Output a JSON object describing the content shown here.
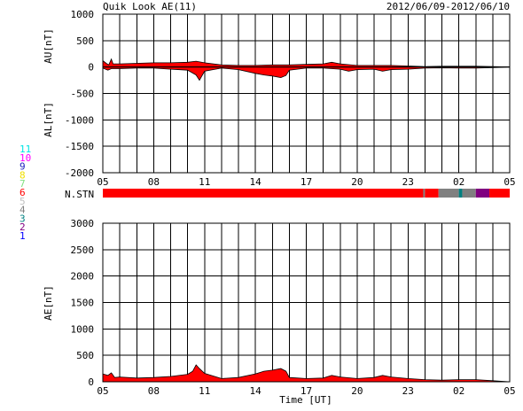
{
  "header": {
    "title": "Quik Look AE(11)",
    "date_range": "2012/06/09-2012/06/10"
  },
  "colors": {
    "fill": "#ff0000",
    "grey": "#808080",
    "teal": "#008080",
    "purple": "#800080",
    "black": "#000000"
  },
  "station_legend": [
    {
      "label": "11",
      "color": "#00e5e5"
    },
    {
      "label": "10",
      "color": "#ff00ff"
    },
    {
      "label": "9",
      "color": "#2020c0"
    },
    {
      "label": "8",
      "color": "#f0e000"
    },
    {
      "label": "7",
      "color": "#80e080"
    },
    {
      "label": "6",
      "color": "#ff0000"
    },
    {
      "label": "5",
      "color": "#c0c0c0"
    },
    {
      "label": "4",
      "color": "#808080"
    },
    {
      "label": "3",
      "color": "#008080"
    },
    {
      "label": "2",
      "color": "#800080"
    },
    {
      "label": "1",
      "color": "#0000ff"
    }
  ],
  "nstn_label": "N.STN",
  "xlabel": "Time [UT]",
  "chart_data": [
    {
      "type": "area",
      "title": "",
      "ylabels": [
        "AU[nT]",
        "AL[nT]"
      ],
      "ylim": [
        -2000,
        1000
      ],
      "yticks": [
        1000,
        500,
        0,
        -500,
        -1000,
        -1500,
        -2000
      ],
      "xlim": [
        5,
        29
      ],
      "xticks": [
        "05",
        "08",
        "11",
        "14",
        "17",
        "20",
        "23",
        "02",
        "05"
      ],
      "grid": true,
      "series": [
        {
          "points": [
            [
              5.0,
              120
            ],
            [
              5.2,
              70
            ],
            [
              5.35,
              40
            ],
            [
              5.5,
              150
            ],
            [
              5.6,
              60
            ],
            [
              6,
              60
            ],
            [
              7,
              70
            ],
            [
              8,
              80
            ],
            [
              9,
              80
            ],
            [
              10,
              90
            ],
            [
              10.5,
              110
            ],
            [
              11,
              80
            ],
            [
              12,
              40
            ],
            [
              13,
              30
            ],
            [
              14,
              30
            ],
            [
              15,
              40
            ],
            [
              16,
              40
            ],
            [
              17,
              50
            ],
            [
              18,
              60
            ],
            [
              18.5,
              90
            ],
            [
              19,
              60
            ],
            [
              20,
              30
            ],
            [
              21,
              30
            ],
            [
              22,
              30
            ],
            [
              23,
              20
            ],
            [
              24,
              10
            ],
            [
              25,
              15
            ],
            [
              26,
              15
            ],
            [
              27,
              15
            ],
            [
              28,
              10
            ],
            [
              29,
              0
            ]
          ]
        },
        {
          "points": [
            [
              5.0,
              -20
            ],
            [
              5.3,
              -60
            ],
            [
              5.5,
              -30
            ],
            [
              6,
              -30
            ],
            [
              7,
              -20
            ],
            [
              8,
              -20
            ],
            [
              9,
              -40
            ],
            [
              10,
              -60
            ],
            [
              10.5,
              -150
            ],
            [
              10.7,
              -250
            ],
            [
              11,
              -80
            ],
            [
              12,
              -20
            ],
            [
              13,
              -50
            ],
            [
              14,
              -120
            ],
            [
              14.5,
              -150
            ],
            [
              15,
              -170
            ],
            [
              15.5,
              -200
            ],
            [
              15.8,
              -160
            ],
            [
              16,
              -60
            ],
            [
              17,
              -20
            ],
            [
              18,
              -20
            ],
            [
              19,
              -40
            ],
            [
              19.5,
              -80
            ],
            [
              20,
              -50
            ],
            [
              21,
              -40
            ],
            [
              21.5,
              -80
            ],
            [
              22,
              -50
            ],
            [
              23,
              -40
            ],
            [
              24,
              -20
            ],
            [
              25,
              -15
            ],
            [
              26,
              -20
            ],
            [
              27,
              -20
            ],
            [
              28,
              -10
            ],
            [
              29,
              0
            ]
          ]
        }
      ]
    },
    {
      "type": "bar",
      "title": "",
      "ylabel": "N.STN",
      "xlim": [
        5,
        29
      ],
      "segments": [
        {
          "start": 5.0,
          "end": 23.9,
          "color": "#ff0000"
        },
        {
          "start": 23.9,
          "end": 24.0,
          "color": "#808080"
        },
        {
          "start": 24.0,
          "end": 24.8,
          "color": "#ff0000"
        },
        {
          "start": 24.8,
          "end": 26.0,
          "color": "#808080"
        },
        {
          "start": 26.0,
          "end": 26.2,
          "color": "#008080"
        },
        {
          "start": 26.2,
          "end": 27.0,
          "color": "#808080"
        },
        {
          "start": 27.0,
          "end": 27.8,
          "color": "#800080"
        },
        {
          "start": 27.8,
          "end": 29.0,
          "color": "#ff0000"
        }
      ]
    },
    {
      "type": "area",
      "title": "",
      "ylabel": "AE[nT]",
      "ylim": [
        0,
        3000
      ],
      "yticks": [
        3000,
        2500,
        2000,
        1500,
        1000,
        500,
        0
      ],
      "xlim": [
        5,
        29
      ],
      "xticks": [
        "05",
        "08",
        "11",
        "14",
        "17",
        "20",
        "23",
        "02",
        "05"
      ],
      "grid": true,
      "series": [
        {
          "points": [
            [
              5.0,
              150
            ],
            [
              5.3,
              120
            ],
            [
              5.5,
              170
            ],
            [
              5.7,
              80
            ],
            [
              6,
              90
            ],
            [
              7,
              70
            ],
            [
              8,
              80
            ],
            [
              9,
              100
            ],
            [
              10,
              140
            ],
            [
              10.3,
              200
            ],
            [
              10.5,
              320
            ],
            [
              10.7,
              250
            ],
            [
              11,
              160
            ],
            [
              12,
              60
            ],
            [
              13,
              80
            ],
            [
              14,
              150
            ],
            [
              14.5,
              200
            ],
            [
              15,
              220
            ],
            [
              15.5,
              250
            ],
            [
              15.8,
              200
            ],
            [
              16,
              80
            ],
            [
              17,
              60
            ],
            [
              18,
              70
            ],
            [
              18.5,
              120
            ],
            [
              19,
              90
            ],
            [
              20,
              60
            ],
            [
              21,
              80
            ],
            [
              21.5,
              120
            ],
            [
              22,
              90
            ],
            [
              23,
              60
            ],
            [
              24,
              40
            ],
            [
              25,
              30
            ],
            [
              26,
              40
            ],
            [
              27,
              40
            ],
            [
              28,
              20
            ],
            [
              29,
              0
            ]
          ]
        }
      ]
    }
  ]
}
